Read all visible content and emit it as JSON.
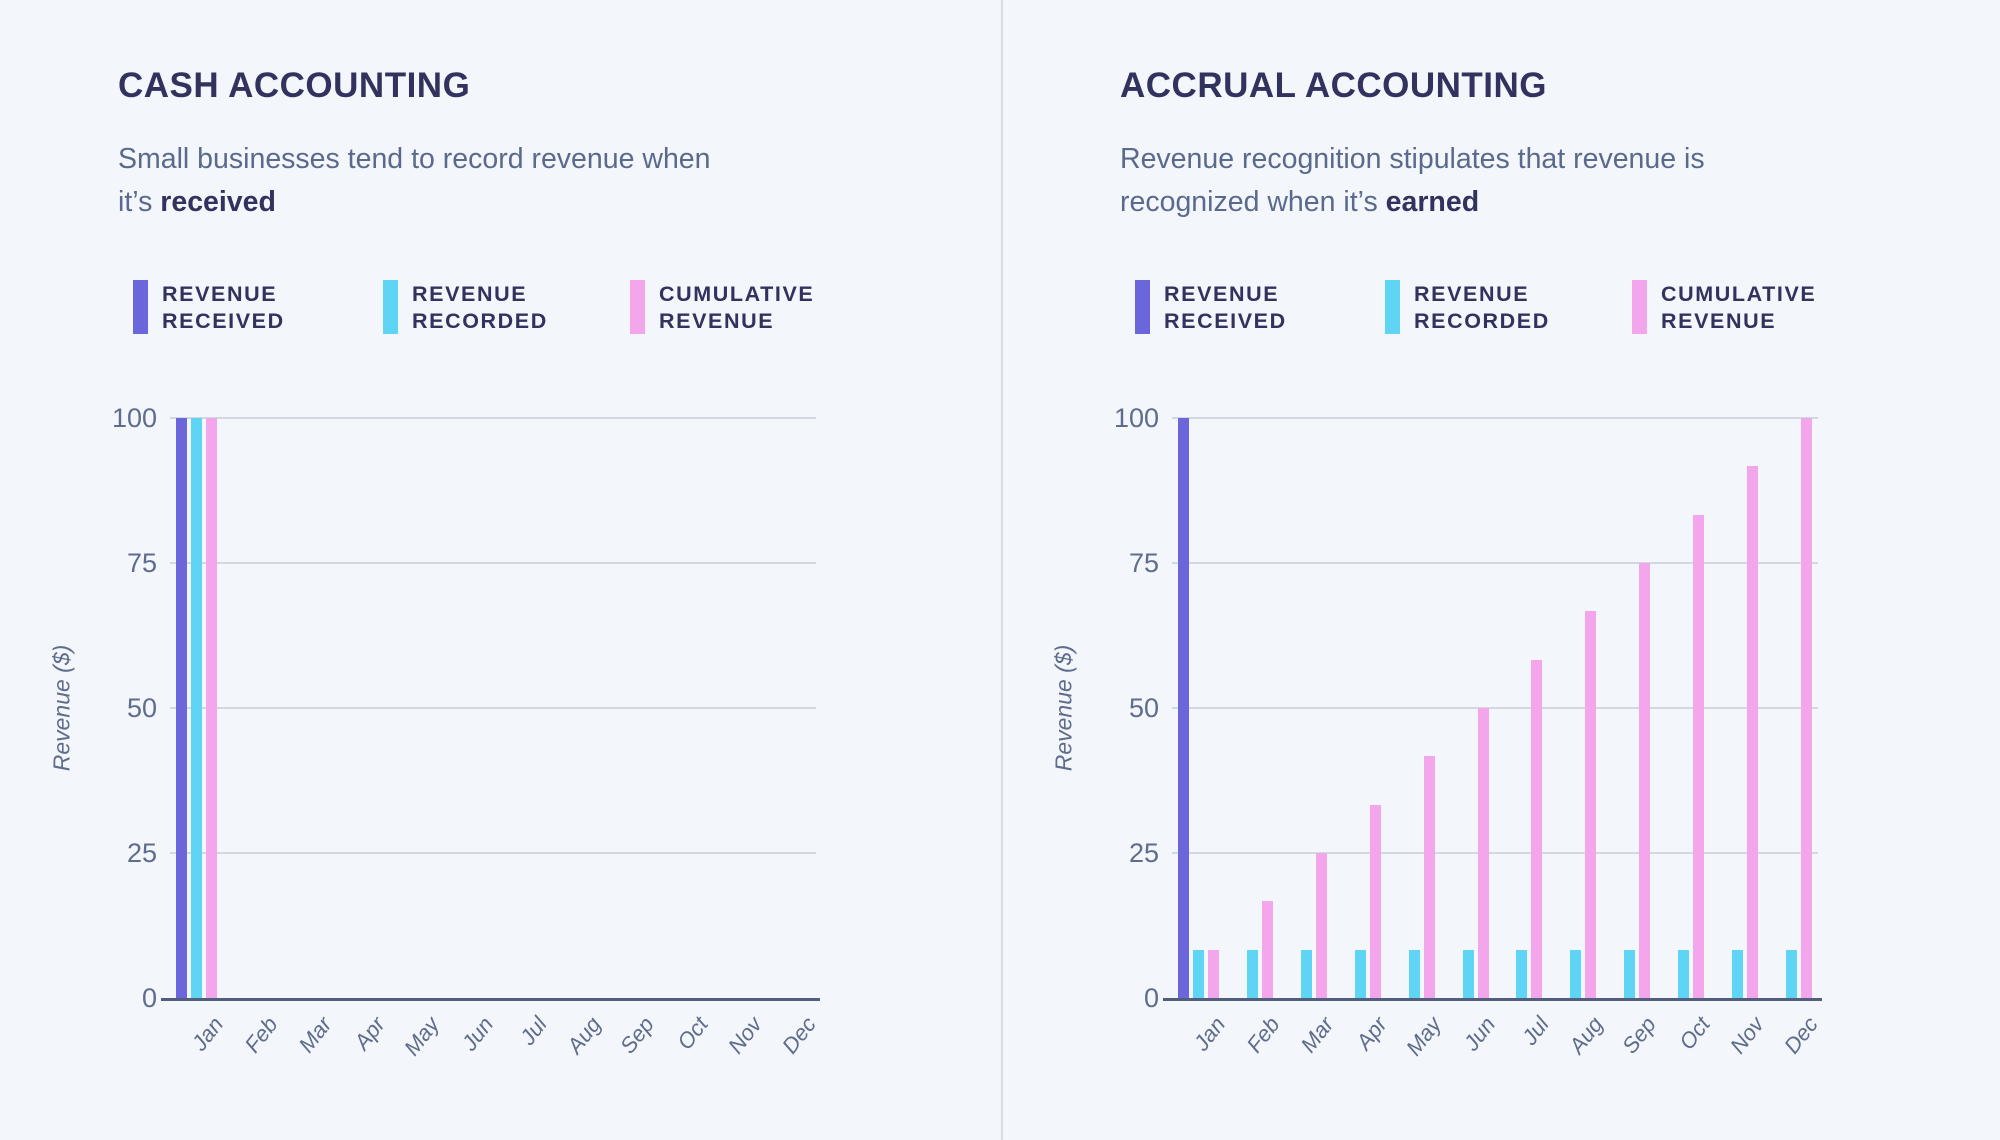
{
  "page": {
    "background": "#F3F6FA",
    "divider_color": "#D9DCE5"
  },
  "colors": {
    "title_navy": "#32325E",
    "subtitle_slate": "#5B6A8C",
    "tick_slate": "#5F6C8B",
    "gridline": "#D2D7E2",
    "axis_line": "#515E7E",
    "revenue_received": "#6B66DB",
    "revenue_recorded": "#5FD5F5",
    "cumulative_revenue": "#F4A6ED"
  },
  "panels": [
    {
      "title": "CASH ACCOUNTING",
      "subtitle": {
        "line1": "Small businesses tend to record revenue when",
        "line2": "it’s ",
        "bold": "received"
      },
      "legend": [
        {
          "label_line1": "REVENUE",
          "label_line2": "RECEIVED",
          "color": "#6B66DB"
        },
        {
          "label_line1": "REVENUE",
          "label_line2": "RECORDED",
          "color": "#5FD5F5"
        },
        {
          "label_line1": "CUMULATIVE",
          "label_line2": "REVENUE",
          "color": "#F4A6ED"
        }
      ]
    },
    {
      "title": "ACCRUAL ACCOUNTING",
      "subtitle": {
        "line1": "Revenue recognition stipulates that revenue is",
        "line2": "recognized when it’s ",
        "bold": "earned"
      },
      "legend": [
        {
          "label_line1": "REVENUE",
          "label_line2": "RECEIVED",
          "color": "#6B66DB"
        },
        {
          "label_line1": "REVENUE",
          "label_line2": "RECORDED",
          "color": "#5FD5F5"
        },
        {
          "label_line1": "CUMULATIVE",
          "label_line2": "REVENUE",
          "color": "#F4A6ED"
        }
      ]
    }
  ],
  "chart_data": [
    {
      "type": "bar",
      "title": "CASH ACCOUNTING",
      "categories": [
        "Jan",
        "Feb",
        "Mar",
        "Apr",
        "May",
        "Jun",
        "Jul",
        "Aug",
        "Sep",
        "Oct",
        "Nov",
        "Dec"
      ],
      "series": [
        {
          "name": "REVENUE RECEIVED",
          "color": "#6B66DB",
          "values": [
            100,
            0,
            0,
            0,
            0,
            0,
            0,
            0,
            0,
            0,
            0,
            0
          ]
        },
        {
          "name": "REVENUE RECORDED",
          "color": "#5FD5F5",
          "values": [
            100,
            0,
            0,
            0,
            0,
            0,
            0,
            0,
            0,
            0,
            0,
            0
          ]
        },
        {
          "name": "CUMULATIVE REVENUE",
          "color": "#F4A6ED",
          "values": [
            100,
            0,
            0,
            0,
            0,
            0,
            0,
            0,
            0,
            0,
            0,
            0
          ]
        }
      ],
      "xlabel": "",
      "ylabel": "Revenue ($)",
      "yticks": [
        0,
        25,
        50,
        75,
        100
      ],
      "ylim": [
        0,
        100
      ],
      "grid": true,
      "legend_position": "top"
    },
    {
      "type": "bar",
      "title": "ACCRUAL ACCOUNTING",
      "categories": [
        "Jan",
        "Feb",
        "Mar",
        "Apr",
        "May",
        "Jun",
        "Jul",
        "Aug",
        "Sep",
        "Oct",
        "Nov",
        "Dec"
      ],
      "series": [
        {
          "name": "REVENUE RECEIVED",
          "color": "#6B66DB",
          "values": [
            100,
            0,
            0,
            0,
            0,
            0,
            0,
            0,
            0,
            0,
            0,
            0
          ]
        },
        {
          "name": "REVENUE RECORDED",
          "color": "#5FD5F5",
          "values": [
            8.33,
            8.33,
            8.33,
            8.33,
            8.33,
            8.33,
            8.33,
            8.33,
            8.33,
            8.33,
            8.33,
            8.33
          ]
        },
        {
          "name": "CUMULATIVE REVENUE",
          "color": "#F4A6ED",
          "values": [
            8.33,
            16.67,
            25,
            33.33,
            41.67,
            50,
            58.33,
            66.67,
            75,
            83.33,
            91.67,
            100
          ]
        }
      ],
      "xlabel": "",
      "ylabel": "Revenue ($)",
      "yticks": [
        0,
        25,
        50,
        75,
        100
      ],
      "ylim": [
        0,
        100
      ],
      "grid": true,
      "legend_position": "top"
    }
  ]
}
